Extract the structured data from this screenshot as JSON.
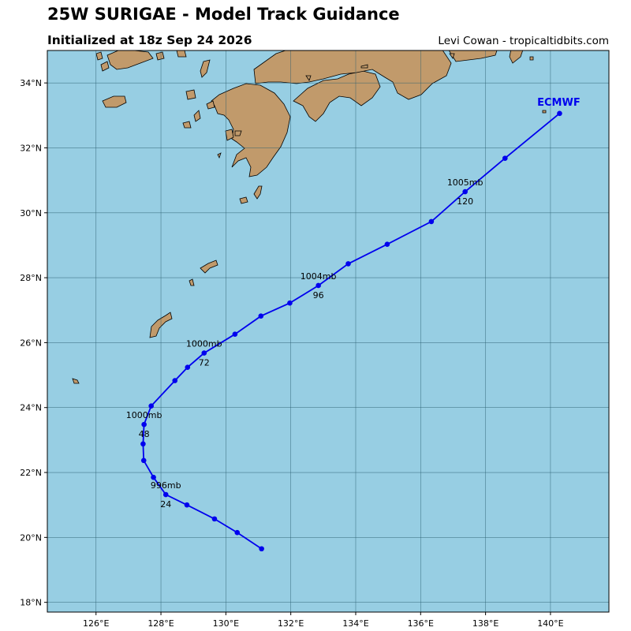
{
  "header": {
    "title": "25W SURIGAE - Model Track Guidance",
    "subtitle": "Initialized at 18z Sep 24 2026",
    "credit": "Levi Cowan - tropicaltidbits.com"
  },
  "colors": {
    "ocean": "#97CEE3",
    "land": "#C19A6B",
    "track": "#0000EE",
    "grid": "#2B5F70"
  },
  "map": {
    "lon_range": [
      124.5,
      141.8
    ],
    "lat_range": [
      17.7,
      35.0
    ],
    "lon_ticks": [
      {
        "value": 126,
        "label": "126°E"
      },
      {
        "value": 128,
        "label": "128°E"
      },
      {
        "value": 130,
        "label": "130°E"
      },
      {
        "value": 132,
        "label": "132°E"
      },
      {
        "value": 134,
        "label": "134°E"
      },
      {
        "value": 136,
        "label": "136°E"
      },
      {
        "value": 138,
        "label": "138°E"
      },
      {
        "value": 140,
        "label": "140°E"
      }
    ],
    "lat_ticks": [
      {
        "value": 18,
        "label": "18°N"
      },
      {
        "value": 20,
        "label": "20°N"
      },
      {
        "value": 22,
        "label": "22°N"
      },
      {
        "value": 24,
        "label": "24°N"
      },
      {
        "value": 26,
        "label": "26°N"
      },
      {
        "value": 28,
        "label": "28°N"
      },
      {
        "value": 30,
        "label": "30°N"
      },
      {
        "value": 32,
        "label": "32°N"
      },
      {
        "value": 34,
        "label": "34°N"
      }
    ]
  },
  "chart_data": {
    "type": "line",
    "series": [
      {
        "name": "ECMWF",
        "points": [
          {
            "lon": 131.1,
            "lat": 19.65,
            "hour": 0
          },
          {
            "lon": 130.35,
            "lat": 20.15,
            "hour": 6
          },
          {
            "lon": 129.65,
            "lat": 20.57,
            "hour": 12
          },
          {
            "lon": 128.8,
            "lat": 21.0,
            "hour": 18
          },
          {
            "lon": 128.15,
            "lat": 21.32,
            "hour": 24,
            "pressure": "996mb",
            "hour_label": "24"
          },
          {
            "lon": 127.77,
            "lat": 21.85,
            "hour": 30
          },
          {
            "lon": 127.47,
            "lat": 22.37,
            "hour": 36
          },
          {
            "lon": 127.45,
            "lat": 22.88,
            "hour": 42
          },
          {
            "lon": 127.48,
            "lat": 23.48,
            "hour": 48,
            "pressure": "1000mb",
            "hour_label": "48"
          },
          {
            "lon": 127.7,
            "lat": 24.05,
            "hour": 54
          },
          {
            "lon": 128.43,
            "lat": 24.83,
            "hour": 60
          },
          {
            "lon": 128.82,
            "lat": 25.24,
            "hour": 66
          },
          {
            "lon": 129.33,
            "lat": 25.68,
            "hour": 72,
            "pressure": "1000mb",
            "hour_label": "72"
          },
          {
            "lon": 130.28,
            "lat": 26.26,
            "hour": 78
          },
          {
            "lon": 131.08,
            "lat": 26.82,
            "hour": 84
          },
          {
            "lon": 131.97,
            "lat": 27.22,
            "hour": 90
          },
          {
            "lon": 132.85,
            "lat": 27.76,
            "hour": 96,
            "pressure": "1004mb",
            "hour_label": "96"
          },
          {
            "lon": 133.77,
            "lat": 28.43,
            "hour": 102
          },
          {
            "lon": 134.97,
            "lat": 29.03,
            "hour": 108
          },
          {
            "lon": 136.33,
            "lat": 29.73,
            "hour": 114
          },
          {
            "lon": 137.37,
            "lat": 30.65,
            "hour": 120,
            "pressure": "1005mb",
            "hour_label": "120"
          },
          {
            "lon": 138.6,
            "lat": 31.68,
            "hour": 126
          },
          {
            "lon": 140.28,
            "lat": 33.06,
            "hour": 132
          }
        ]
      }
    ],
    "model_label": "ECMWF"
  }
}
